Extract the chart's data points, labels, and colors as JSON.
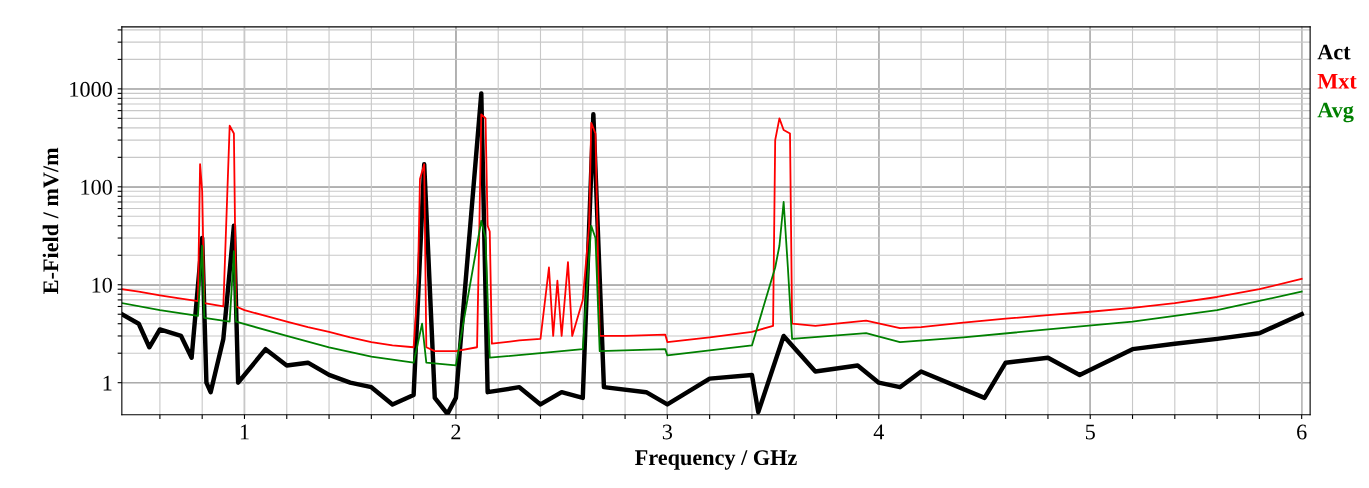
{
  "chart_data": {
    "type": "line",
    "xlabel": "Frequency / GHz",
    "ylabel": "E-Field / mV/m",
    "log": "y",
    "grid": true,
    "legend": "right",
    "marker": "none",
    "line_style": "solid",
    "xlim": [
      0.42,
      6.04
    ],
    "ylim": [
      0.47,
      4300
    ],
    "xticks": [
      {
        "value": 0.6,
        "label": null
      },
      {
        "value": 0.8,
        "label": null
      },
      1,
      {
        "value": 1.2,
        "label": null
      },
      {
        "value": 1.4,
        "label": null
      },
      {
        "value": 1.6,
        "label": null
      },
      {
        "value": 1.8,
        "label": null
      },
      2,
      {
        "value": 2.2,
        "label": null
      },
      {
        "value": 2.4,
        "label": null
      },
      {
        "value": 2.6,
        "label": null
      },
      {
        "value": 2.8,
        "label": null
      },
      3,
      {
        "value": 3.2,
        "label": null
      },
      {
        "value": 3.4,
        "label": null
      },
      {
        "value": 3.6,
        "label": null
      },
      {
        "value": 3.8,
        "label": null
      },
      4,
      {
        "value": 4.2,
        "label": null
      },
      {
        "value": 4.4,
        "label": null
      },
      {
        "value": 4.6,
        "label": null
      },
      {
        "value": 4.8,
        "label": null
      },
      5,
      {
        "value": 5.2,
        "label": null
      },
      {
        "value": 5.4,
        "label": null
      },
      {
        "value": 5.6,
        "label": null
      },
      {
        "value": 5.8,
        "label": null
      },
      6
    ],
    "yticks": [
      1,
      {
        "value": 2,
        "label": null
      },
      {
        "value": 3,
        "label": null
      },
      {
        "value": 4,
        "label": null
      },
      {
        "value": 5,
        "label": null
      },
      {
        "value": 6,
        "label": null
      },
      {
        "value": 7,
        "label": null
      },
      {
        "value": 8,
        "label": null
      },
      {
        "value": 9,
        "label": null
      },
      10,
      {
        "value": 20,
        "label": null
      },
      {
        "value": 30,
        "label": null
      },
      {
        "value": 40,
        "label": null
      },
      {
        "value": 50,
        "label": null
      },
      {
        "value": 60,
        "label": null
      },
      {
        "value": 70,
        "label": null
      },
      {
        "value": 80,
        "label": null
      },
      {
        "value": 90,
        "label": null
      },
      100,
      {
        "value": 200,
        "label": null
      },
      {
        "value": 300,
        "label": null
      },
      {
        "value": 400,
        "label": null
      },
      {
        "value": 500,
        "label": null
      },
      {
        "value": 600,
        "label": null
      },
      {
        "value": 700,
        "label": null
      },
      {
        "value": 800,
        "label": null
      },
      {
        "value": 900,
        "label": null
      },
      1000,
      {
        "value": 2000,
        "label": null
      },
      {
        "value": 3000,
        "label": null
      },
      {
        "value": 4000,
        "label": null
      }
    ],
    "series": [
      {
        "name": "Act",
        "color": "#000000",
        "x": [
          0.42,
          0.5,
          0.55,
          0.6,
          0.7,
          0.75,
          0.8,
          0.82,
          0.84,
          0.9,
          0.95,
          0.97,
          1.1,
          1.2,
          1.3,
          1.4,
          1.5,
          1.6,
          1.7,
          1.8,
          1.85,
          1.9,
          1.96,
          2.0,
          2.12,
          2.15,
          2.3,
          2.4,
          2.5,
          2.6,
          2.65,
          2.7,
          2.9,
          3.0,
          3.2,
          3.4,
          3.43,
          3.55,
          3.7,
          3.9,
          4.0,
          4.1,
          4.2,
          4.5,
          4.6,
          4.8,
          4.95,
          5.2,
          5.4,
          5.6,
          5.8,
          6.0
        ],
        "values": [
          5,
          4,
          2.3,
          3.5,
          3,
          1.8,
          30,
          1.0,
          0.8,
          2.8,
          40,
          1.0,
          2.2,
          1.5,
          1.6,
          1.2,
          1.0,
          0.9,
          0.6,
          0.75,
          170,
          0.7,
          0.48,
          0.7,
          900,
          0.8,
          0.9,
          0.6,
          0.8,
          0.7,
          550,
          0.9,
          0.8,
          0.6,
          1.1,
          1.2,
          0.5,
          3,
          1.3,
          1.5,
          1.0,
          0.9,
          1.3,
          0.7,
          1.6,
          1.8,
          1.2,
          2.2,
          2.5,
          2.8,
          3.2,
          5
        ]
      },
      {
        "name": "Mxt",
        "color": "#ff0000",
        "x": [
          0.42,
          0.5,
          0.6,
          0.7,
          0.78,
          0.79,
          0.8,
          0.81,
          0.9,
          0.93,
          0.95,
          0.96,
          1.0,
          1.1,
          1.2,
          1.3,
          1.4,
          1.5,
          1.6,
          1.7,
          1.8,
          1.82,
          1.83,
          1.85,
          1.86,
          1.9,
          2.0,
          2.1,
          2.11,
          2.12,
          2.14,
          2.15,
          2.16,
          2.17,
          2.3,
          2.4,
          2.44,
          2.46,
          2.48,
          2.5,
          2.53,
          2.55,
          2.6,
          2.63,
          2.64,
          2.66,
          2.67,
          2.68,
          2.8,
          2.99,
          3.0,
          3.2,
          3.4,
          3.5,
          3.51,
          3.53,
          3.55,
          3.58,
          3.59,
          3.7,
          3.8,
          3.94,
          4.1,
          4.2,
          4.4,
          4.6,
          4.8,
          5.0,
          5.2,
          5.4,
          5.6,
          5.8,
          6.0
        ],
        "values": [
          9,
          8.5,
          7.8,
          7.2,
          6.8,
          170,
          90,
          6.5,
          6,
          420,
          350,
          6,
          5.5,
          4.8,
          4.2,
          3.7,
          3.3,
          2.9,
          2.6,
          2.4,
          2.3,
          10,
          120,
          170,
          2.3,
          2.1,
          2.1,
          2.3,
          30,
          550,
          500,
          40,
          35,
          2.5,
          2.7,
          2.8,
          15,
          3,
          11,
          3,
          17,
          3,
          7,
          40,
          450,
          350,
          30,
          3,
          3,
          3.1,
          2.6,
          2.9,
          3.3,
          3.8,
          300,
          500,
          380,
          350,
          4,
          3.8,
          4.0,
          4.3,
          3.6,
          3.7,
          4.1,
          4.5,
          4.9,
          5.3,
          5.8,
          6.5,
          7.5,
          9,
          11.5
        ]
      },
      {
        "name": "Avg",
        "color": "#008000",
        "x": [
          0.42,
          0.6,
          0.78,
          0.8,
          0.81,
          0.93,
          0.95,
          0.96,
          1.2,
          1.4,
          1.6,
          1.8,
          1.84,
          1.86,
          2.0,
          2.12,
          2.14,
          2.16,
          2.4,
          2.6,
          2.64,
          2.66,
          2.68,
          2.99,
          3.0,
          3.4,
          3.51,
          3.53,
          3.55,
          3.57,
          3.59,
          3.94,
          4.1,
          4.4,
          4.8,
          5.2,
          5.6,
          6.0
        ],
        "values": [
          6.5,
          5.5,
          4.8,
          25,
          4.6,
          4.2,
          22,
          4.2,
          3,
          2.3,
          1.85,
          1.6,
          4,
          1.6,
          1.5,
          45,
          30,
          1.8,
          2.0,
          2.2,
          40,
          30,
          2.1,
          2.2,
          1.9,
          2.4,
          15,
          25,
          70,
          15,
          2.8,
          3.2,
          2.6,
          2.9,
          3.5,
          4.2,
          5.5,
          8.5
        ]
      }
    ]
  }
}
